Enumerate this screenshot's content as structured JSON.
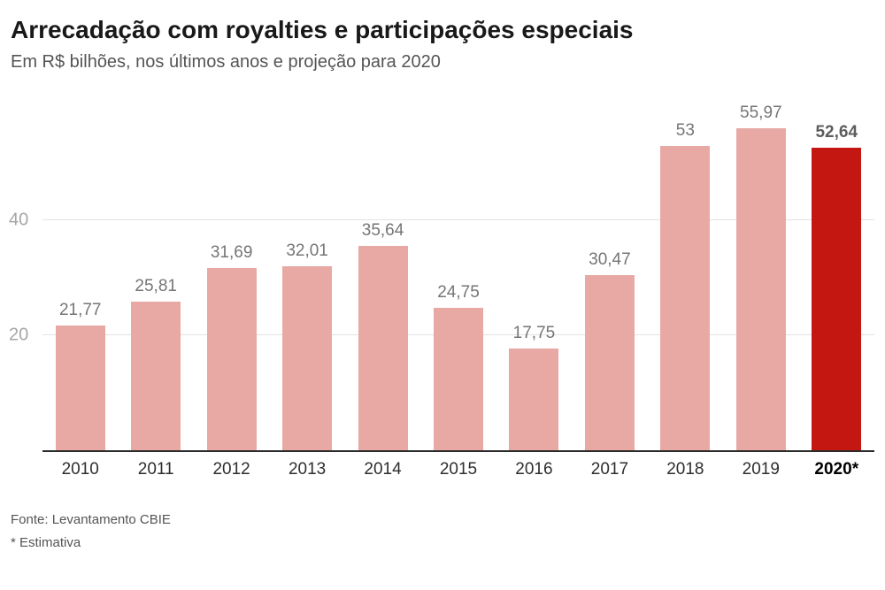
{
  "header": {
    "title": "Arrecadação com royalties e participações especiais",
    "subtitle": "Em R$ bilhões, nos últimos anos e projeção para 2020"
  },
  "chart_data": {
    "type": "bar",
    "title": "Arrecadação com royalties e participações especiais",
    "subtitle": "Em R$ bilhões, nos últimos anos e projeção para 2020",
    "categories": [
      "2010",
      "2011",
      "2012",
      "2013",
      "2014",
      "2015",
      "2016",
      "2017",
      "2018",
      "2019",
      "2020*"
    ],
    "values": [
      21.77,
      25.81,
      31.69,
      32.01,
      35.64,
      24.75,
      17.75,
      30.47,
      53,
      55.97,
      52.64
    ],
    "value_labels": [
      "21,77",
      "25,81",
      "31,69",
      "32,01",
      "35,64",
      "24,75",
      "17,75",
      "30,47",
      "53",
      "55,97",
      "52,64"
    ],
    "highlight_index": 10,
    "xlabel": "",
    "ylabel": "Em R$ bilhões",
    "ylim": [
      0,
      64
    ],
    "y_ticks": [
      20,
      40
    ],
    "grid": true,
    "legend_position": "none",
    "colors": {
      "bar": "#e8a9a5",
      "highlight_bar": "#c51712",
      "gridline": "#e2e2e2",
      "axis_line": "#2b2b2b"
    }
  },
  "footer": {
    "source": "Fonte: Levantamento CBIE",
    "note": "* Estimativa"
  }
}
